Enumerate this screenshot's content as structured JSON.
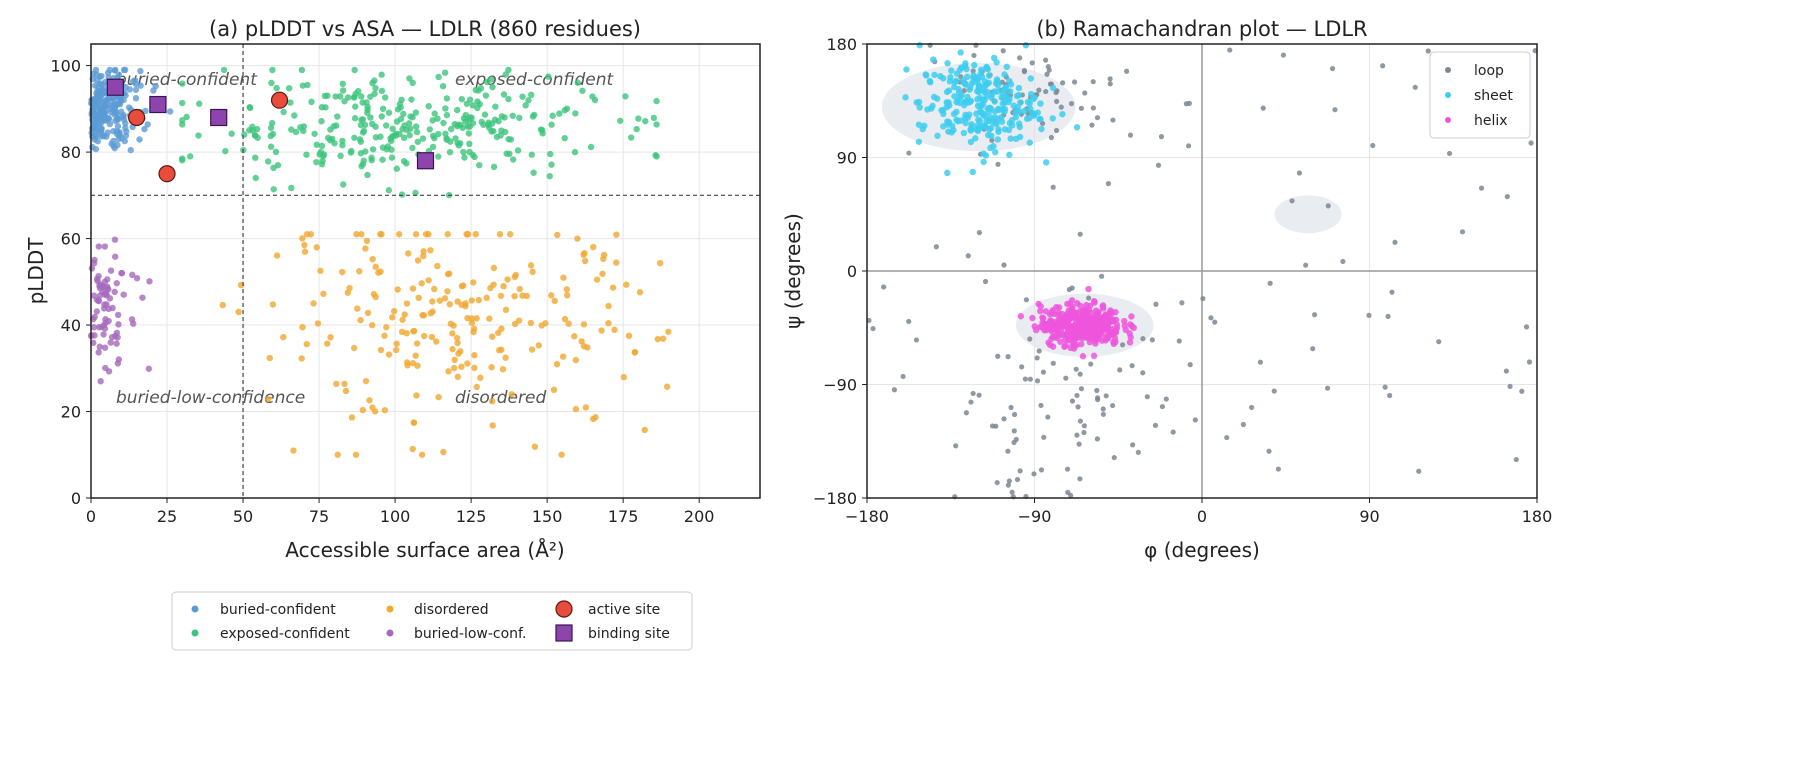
{
  "chart_data": [
    {
      "type": "scatter",
      "title": "(a) pLDDT vs ASA — LDLR (860 residues)",
      "xlabel": "Accessible surface area (Å²)",
      "ylabel": "pLDDT",
      "xlim": [
        0,
        220
      ],
      "ylim": [
        0,
        105
      ],
      "xticks": [
        0,
        25,
        50,
        75,
        100,
        125,
        150,
        175,
        200
      ],
      "yticks": [
        0,
        20,
        40,
        60,
        80,
        100
      ],
      "threshold_lines": {
        "x": 50,
        "y": 70
      },
      "grid": true,
      "region_labels": [
        {
          "text": "buried-confident",
          "x": 8,
          "y": 97
        },
        {
          "text": "exposed-confident",
          "x": 120,
          "y": 97
        },
        {
          "text": "buried-low-confidence",
          "x": 8,
          "y": 23
        },
        {
          "text": "disordered",
          "x": 120,
          "y": 23
        }
      ],
      "series": [
        {
          "name": "buried-confident",
          "color": "#5b9bd5",
          "x_range": [
            0,
            28
          ],
          "y_range": [
            77,
            99
          ],
          "count": 220
        },
        {
          "name": "exposed-confident",
          "color": "#3cc47c",
          "x_range": [
            30,
            186
          ],
          "y_range": [
            66,
            99
          ],
          "count": 320
        },
        {
          "name": "disordered",
          "color": "#f0a830",
          "x_range": [
            40,
            210
          ],
          "y_range": [
            10,
            61
          ],
          "count": 240
        },
        {
          "name": "buried-low-conf.",
          "color": "#a569bd",
          "x_range": [
            0,
            25
          ],
          "y_range": [
            27,
            61
          ],
          "count": 80
        },
        {
          "name": "active site",
          "color": "#e74c3c",
          "points": [
            [
              15,
              88
            ],
            [
              25,
              75
            ],
            [
              62,
              92
            ]
          ]
        },
        {
          "name": "binding site",
          "color": "#8e44ad",
          "points": [
            [
              8,
              95
            ],
            [
              22,
              91
            ],
            [
              42,
              88
            ],
            [
              110,
              78
            ]
          ]
        }
      ],
      "legend": {
        "placement": "bottom",
        "items": [
          {
            "label": "buried-confident",
            "color": "#5b9bd5",
            "marker": "dot"
          },
          {
            "label": "exposed-confident",
            "color": "#3cc47c",
            "marker": "dot"
          },
          {
            "label": "disordered",
            "color": "#f0a830",
            "marker": "dot"
          },
          {
            "label": "buried-low-conf.",
            "color": "#a569bd",
            "marker": "dot"
          },
          {
            "label": "active site",
            "color": "#e74c3c",
            "marker": "circle"
          },
          {
            "label": "binding site",
            "color": "#8e44ad",
            "marker": "square"
          }
        ]
      }
    },
    {
      "type": "scatter",
      "title": "(b) Ramachandran plot — LDLR",
      "xlabel": "φ (degrees)",
      "ylabel": "ψ (degrees)",
      "xlim": [
        -180,
        180
      ],
      "ylim": [
        -180,
        180
      ],
      "xticks": [
        -180,
        -90,
        0,
        90,
        180
      ],
      "yticks": [
        -180,
        -90,
        0,
        90,
        180
      ],
      "tick_labels_x": [
        "−180",
        "−90",
        "0",
        "90",
        "180"
      ],
      "tick_labels_y": [
        "−180",
        "−90",
        "0",
        "90",
        "180"
      ],
      "zero_lines": true,
      "grid": true,
      "favored_regions": [
        {
          "name": "beta",
          "cx": -120,
          "cy": 130,
          "rx": 52,
          "ry": 35
        },
        {
          "name": "alpha-right",
          "cx": -63,
          "cy": -43,
          "rx": 37,
          "ry": 25
        },
        {
          "name": "alpha-left",
          "cx": 57,
          "cy": 45,
          "rx": 18,
          "ry": 15
        }
      ],
      "series": [
        {
          "name": "loop",
          "color": "#7b8794",
          "count": 230
        },
        {
          "name": "sheet",
          "color": "#3dcdef",
          "center": [
            -120,
            130
          ],
          "count": 260
        },
        {
          "name": "helix",
          "color": "#ee55dd",
          "center": [
            -65,
            -43
          ],
          "count": 370
        }
      ],
      "legend": {
        "placement": "top-right",
        "items": [
          {
            "label": "loop",
            "color": "#7b8794"
          },
          {
            "label": "sheet",
            "color": "#3dcdef"
          },
          {
            "label": "helix",
            "color": "#ee55dd"
          }
        ]
      }
    }
  ]
}
